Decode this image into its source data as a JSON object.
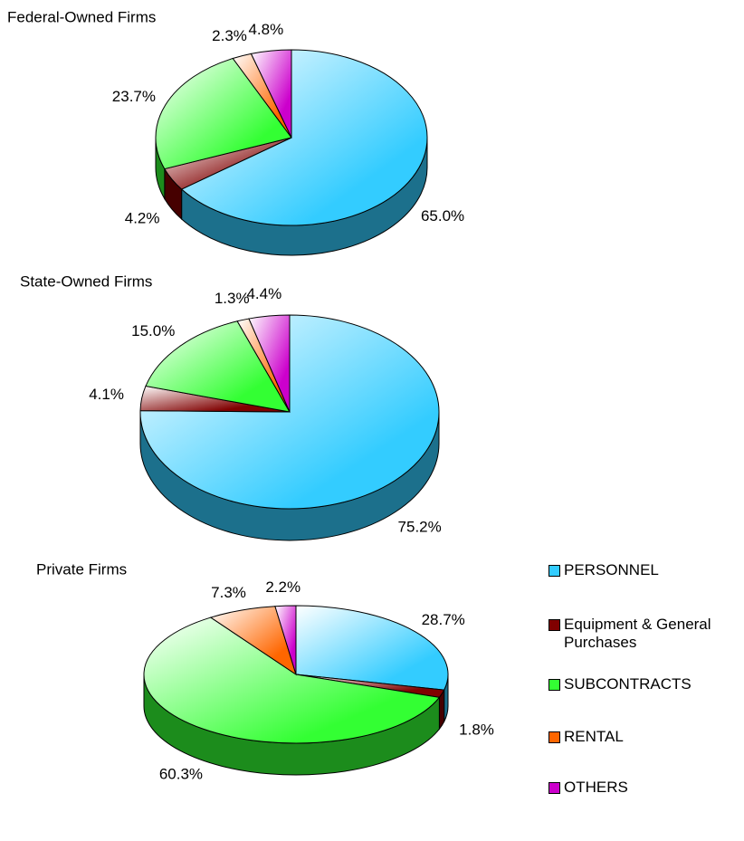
{
  "chart_data": [
    {
      "type": "pie",
      "title": "Federal-Owned Firms",
      "values": [
        65.0,
        4.2,
        23.7,
        2.3,
        4.8
      ],
      "value_labels": [
        "65.0%",
        "4.2%",
        "23.7%",
        "2.3%",
        "4.8%"
      ],
      "colors": [
        "#33ccff",
        "#800000",
        "#33ff33",
        "#ff6600",
        "#cc00cc"
      ]
    },
    {
      "type": "pie",
      "title": "State-Owned Firms",
      "values": [
        75.2,
        4.1,
        15.0,
        1.3,
        4.4
      ],
      "value_labels": [
        "75.2%",
        "4.1%",
        "15.0%",
        "1.3%",
        "4.4%"
      ],
      "colors": [
        "#33ccff",
        "#800000",
        "#33ff33",
        "#ff6600",
        "#cc00cc"
      ]
    },
    {
      "type": "pie",
      "title": "Private Firms",
      "categories": [
        "PERSONNEL",
        "Equipment & General Purchases",
        "SUBCONTRACTS",
        "RENTAL",
        "OTHERS"
      ],
      "values": [
        28.7,
        1.8,
        60.3,
        7.3,
        2.2
      ],
      "value_labels": [
        "28.7%",
        "1.8%",
        "60.3%",
        "7.3%",
        "2.2%"
      ],
      "colors": [
        "#33ccff",
        "#800000",
        "#33ff33",
        "#ff6600",
        "#cc00cc"
      ],
      "legend": "right"
    }
  ]
}
